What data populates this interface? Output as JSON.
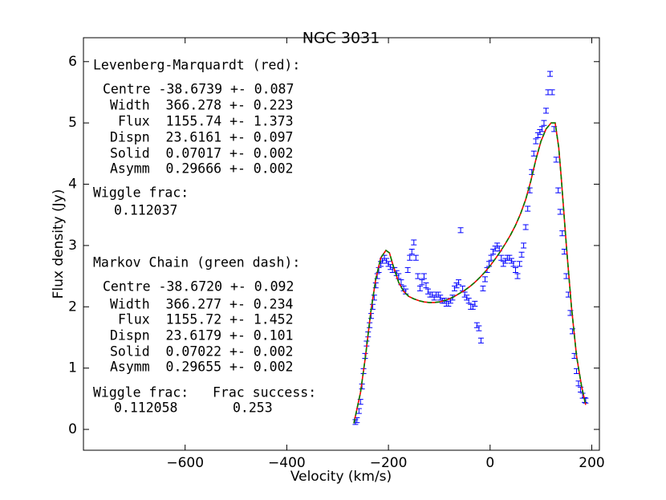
{
  "chart_data": {
    "type": "scatter",
    "title": "NGC 3031",
    "xlabel": "Velocity (km/s)",
    "ylabel": "Flux density (Jy)",
    "xlim": [
      -800,
      215
    ],
    "ylim": [
      -0.34,
      6.39
    ],
    "xticks": [
      {
        "value": -600,
        "label": "−600"
      },
      {
        "value": -400,
        "label": "−400"
      },
      {
        "value": -200,
        "label": "−200"
      },
      0,
      200
    ],
    "yticks": [
      0,
      1,
      2,
      3,
      4,
      5,
      6
    ],
    "annotations": [
      "Levenberg-Marquardt (red):",
      "Centre -38.6739 +- 0.087",
      "Width  366.278 +- 0.223",
      "Flux  1155.74 +- 1.373",
      "Dispn  23.6161 +- 0.097",
      "Solid  0.07017 +- 0.002",
      "Asymm  0.29666 +- 0.002",
      "Wiggle frac:",
      "0.112037",
      "Markov Chain (green dash):",
      "Centre -38.6720 +- 0.092",
      "Width  366.277 +- 0.234",
      "Flux  1155.72 +- 1.452",
      "Dispn  23.6179 +- 0.101",
      "Solid  0.07022 +- 0.002",
      "Asymm  0.29655 +- 0.002",
      "Wiggle frac:",
      "Frac success:",
      "0.112058",
      "0.253"
    ],
    "series": [
      {
        "type": "errorbar",
        "color": "#0000ff",
        "yerr": 0.04,
        "x": [
          -265,
          -262,
          -258,
          -255,
          -252,
          -249,
          -246,
          -243,
          -240,
          -237,
          -234,
          -231,
          -228,
          -225,
          -222,
          -219,
          -215,
          -212,
          -208,
          -204,
          -200,
          -196,
          -192,
          -188,
          -184,
          -180,
          -175,
          -170,
          -166,
          -162,
          -158,
          -154,
          -150,
          -146,
          -142,
          -138,
          -134,
          -130,
          -126,
          -122,
          -118,
          -114,
          -110,
          -106,
          -102,
          -98,
          -94,
          -90,
          -86,
          -82,
          -78,
          -74,
          -70,
          -66,
          -62,
          -58,
          -54,
          -50,
          -46,
          -42,
          -38,
          -34,
          -30,
          -26,
          -22,
          -18,
          -14,
          -10,
          -6,
          -2,
          2,
          6,
          10,
          14,
          18,
          22,
          26,
          30,
          34,
          38,
          42,
          46,
          50,
          54,
          58,
          62,
          66,
          70,
          74,
          78,
          82,
          86,
          90,
          94,
          98,
          102,
          106,
          110,
          114,
          118,
          122,
          126,
          130,
          134,
          138,
          142,
          146,
          150,
          154,
          158,
          162,
          166,
          170,
          174,
          178,
          182,
          186,
          188
        ],
        "values": [
          0.12,
          0.15,
          0.3,
          0.45,
          0.7,
          0.95,
          1.2,
          1.4,
          1.55,
          1.7,
          1.85,
          2.0,
          2.15,
          2.35,
          2.5,
          2.6,
          2.7,
          2.75,
          2.8,
          2.75,
          2.7,
          2.65,
          2.6,
          2.6,
          2.55,
          2.5,
          2.4,
          2.3,
          2.25,
          2.6,
          2.8,
          2.9,
          3.05,
          2.8,
          2.5,
          2.3,
          2.4,
          2.5,
          2.35,
          2.25,
          2.2,
          2.2,
          2.15,
          2.2,
          2.2,
          2.15,
          2.1,
          2.1,
          2.05,
          2.05,
          2.1,
          2.15,
          2.3,
          2.35,
          2.4,
          3.25,
          2.3,
          2.2,
          2.15,
          2.1,
          2.0,
          2.0,
          2.05,
          1.7,
          1.65,
          1.45,
          2.3,
          2.45,
          2.6,
          2.7,
          2.8,
          2.9,
          2.95,
          3.0,
          2.95,
          2.8,
          2.7,
          2.75,
          2.8,
          2.8,
          2.75,
          2.7,
          2.6,
          2.5,
          2.7,
          2.85,
          3.0,
          3.3,
          3.6,
          3.9,
          4.2,
          4.5,
          4.7,
          4.8,
          4.85,
          4.9,
          5.0,
          5.2,
          5.5,
          5.8,
          5.5,
          4.9,
          4.4,
          3.9,
          3.55,
          3.2,
          2.9,
          2.5,
          2.2,
          1.9,
          1.6,
          1.2,
          0.95,
          0.75,
          0.65,
          0.55,
          0.48,
          0.47
        ]
      },
      {
        "type": "line",
        "color": "#ff0000",
        "x": [
          -268,
          -255,
          -245,
          -235,
          -225,
          -215,
          -205,
          -198,
          -190,
          -180,
          -170,
          -160,
          -150,
          -140,
          -130,
          -120,
          -110,
          -100,
          -90,
          -80,
          -70,
          -60,
          -50,
          -40,
          -30,
          -20,
          -10,
          0,
          10,
          20,
          30,
          40,
          50,
          60,
          70,
          80,
          90,
          100,
          110,
          120,
          128,
          135,
          140,
          150,
          160,
          170,
          180,
          188
        ],
        "values": [
          0.1,
          0.6,
          1.2,
          1.9,
          2.45,
          2.8,
          2.92,
          2.88,
          2.65,
          2.4,
          2.25,
          2.17,
          2.13,
          2.1,
          2.08,
          2.07,
          2.07,
          2.08,
          2.1,
          2.13,
          2.17,
          2.22,
          2.27,
          2.33,
          2.4,
          2.48,
          2.57,
          2.67,
          2.78,
          2.9,
          3.03,
          3.17,
          3.33,
          3.52,
          3.75,
          4.05,
          4.4,
          4.7,
          4.9,
          5.0,
          5.0,
          4.6,
          4.1,
          3.0,
          2.0,
          1.2,
          0.7,
          0.4
        ]
      },
      {
        "type": "line",
        "color": "#008000",
        "dashed": true,
        "x": [
          -268,
          -255,
          -245,
          -235,
          -225,
          -215,
          -205,
          -198,
          -190,
          -180,
          -170,
          -160,
          -150,
          -140,
          -130,
          -120,
          -110,
          -100,
          -90,
          -80,
          -70,
          -60,
          -50,
          -40,
          -30,
          -20,
          -10,
          0,
          10,
          20,
          30,
          40,
          50,
          60,
          70,
          80,
          90,
          100,
          110,
          120,
          128,
          135,
          140,
          150,
          160,
          170,
          180,
          188
        ],
        "values": [
          0.1,
          0.6,
          1.2,
          1.9,
          2.45,
          2.8,
          2.92,
          2.88,
          2.65,
          2.4,
          2.25,
          2.17,
          2.13,
          2.1,
          2.08,
          2.07,
          2.07,
          2.08,
          2.1,
          2.13,
          2.17,
          2.22,
          2.27,
          2.33,
          2.4,
          2.48,
          2.57,
          2.67,
          2.78,
          2.9,
          3.03,
          3.17,
          3.33,
          3.52,
          3.75,
          4.05,
          4.4,
          4.7,
          4.9,
          5.0,
          5.0,
          4.6,
          4.1,
          3.0,
          2.0,
          1.2,
          0.7,
          0.4
        ]
      }
    ]
  }
}
